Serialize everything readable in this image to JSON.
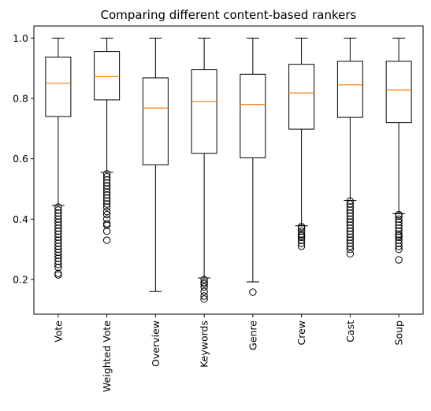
{
  "chart_data": {
    "type": "box",
    "title": "Comparing different content-based rankers",
    "xlabel": "",
    "ylabel": "",
    "ylim": [
      0.085,
      1.04
    ],
    "yticks": [
      "0.2",
      "0.4",
      "0.6",
      "0.8",
      "1.0"
    ],
    "ytick_values": [
      0.2,
      0.4,
      0.6,
      0.8,
      1.0
    ],
    "grid": false,
    "median_color": "#ff7f0e",
    "box_color": "#000000",
    "categories": [
      "Vote",
      "Weighted Vote",
      "Overview",
      "Keywords",
      "Genre",
      "Crew",
      "Cast",
      "Soup"
    ],
    "boxes": [
      {
        "label": "Vote",
        "whisker_low": 0.445,
        "q1": 0.74,
        "median": 0.85,
        "q3": 0.937,
        "whisker_high": 1.0,
        "outliers": [
          0.44,
          0.43,
          0.42,
          0.41,
          0.4,
          0.39,
          0.38,
          0.37,
          0.36,
          0.35,
          0.34,
          0.33,
          0.32,
          0.31,
          0.3,
          0.29,
          0.28,
          0.27,
          0.26,
          0.25,
          0.24,
          0.22,
          0.215
        ]
      },
      {
        "label": "Weighted Vote",
        "whisker_low": 0.555,
        "q1": 0.795,
        "median": 0.872,
        "q3": 0.955,
        "whisker_high": 1.0,
        "outliers": [
          0.55,
          0.54,
          0.53,
          0.52,
          0.51,
          0.5,
          0.49,
          0.48,
          0.47,
          0.46,
          0.45,
          0.44,
          0.425,
          0.415,
          0.4,
          0.385,
          0.38,
          0.36,
          0.33
        ]
      },
      {
        "label": "Overview",
        "whisker_low": 0.16,
        "q1": 0.58,
        "median": 0.768,
        "q3": 0.868,
        "whisker_high": 1.0,
        "outliers": []
      },
      {
        "label": "Keywords",
        "whisker_low": 0.205,
        "q1": 0.618,
        "median": 0.79,
        "q3": 0.895,
        "whisker_high": 1.0,
        "outliers": [
          0.2,
          0.19,
          0.185,
          0.175,
          0.16,
          0.145,
          0.135
        ]
      },
      {
        "label": "Genre",
        "whisker_low": 0.192,
        "q1": 0.603,
        "median": 0.78,
        "q3": 0.88,
        "whisker_high": 1.0,
        "outliers": [
          0.158
        ]
      },
      {
        "label": "Crew",
        "whisker_low": 0.378,
        "q1": 0.698,
        "median": 0.818,
        "q3": 0.913,
        "whisker_high": 1.0,
        "outliers": [
          0.375,
          0.37,
          0.36,
          0.35,
          0.345,
          0.34,
          0.33,
          0.32,
          0.31
        ]
      },
      {
        "label": "Cast",
        "whisker_low": 0.462,
        "q1": 0.737,
        "median": 0.845,
        "q3": 0.923,
        "whisker_high": 1.0,
        "outliers": [
          0.46,
          0.45,
          0.44,
          0.43,
          0.42,
          0.41,
          0.4,
          0.39,
          0.38,
          0.37,
          0.36,
          0.35,
          0.34,
          0.33,
          0.32,
          0.31,
          0.3,
          0.285
        ]
      },
      {
        "label": "Soup",
        "whisker_low": 0.418,
        "q1": 0.72,
        "median": 0.828,
        "q3": 0.923,
        "whisker_high": 1.0,
        "outliers": [
          0.415,
          0.41,
          0.4,
          0.39,
          0.38,
          0.37,
          0.36,
          0.35,
          0.345,
          0.34,
          0.33,
          0.32,
          0.31,
          0.3,
          0.265
        ]
      }
    ]
  }
}
